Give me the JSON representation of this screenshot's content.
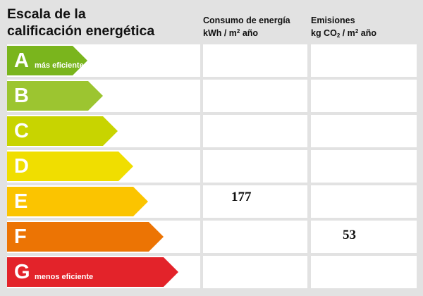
{
  "title": {
    "line1": "Escala de la",
    "line2": "calificación energética"
  },
  "columns": {
    "consumo": {
      "line1": "Consumo de energía",
      "unit_pre": "kWh / m",
      "unit_sup": "2",
      "unit_post": " año"
    },
    "emisiones": {
      "line1": "Emisiones",
      "unit_pre": "kg CO",
      "unit_sub": "2",
      "unit_mid": " / m",
      "unit_sup": "2",
      "unit_post": " año"
    }
  },
  "ratings": [
    {
      "letter": "A",
      "sublabel": "más eficiente",
      "color": "#7ab51d",
      "consumo": "",
      "emisiones": ""
    },
    {
      "letter": "B",
      "sublabel": "",
      "color": "#9cc530",
      "consumo": "",
      "emisiones": ""
    },
    {
      "letter": "C",
      "sublabel": "",
      "color": "#c8d400",
      "consumo": "",
      "emisiones": ""
    },
    {
      "letter": "D",
      "sublabel": "",
      "color": "#f0de00",
      "consumo": "",
      "emisiones": ""
    },
    {
      "letter": "E",
      "sublabel": "",
      "color": "#fbc400",
      "consumo": "177",
      "emisiones": ""
    },
    {
      "letter": "F",
      "sublabel": "",
      "color": "#ec7404",
      "consumo": "",
      "emisiones": "53"
    },
    {
      "letter": "G",
      "sublabel": "menos eficiente",
      "color": "#e3232a",
      "consumo": "",
      "emisiones": ""
    }
  ]
}
